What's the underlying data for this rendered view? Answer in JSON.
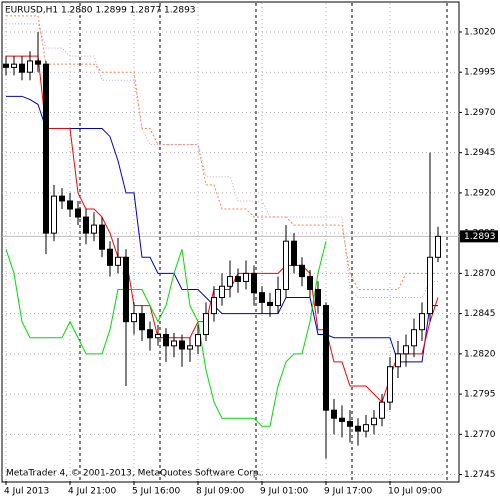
{
  "chart_data": {
    "type": "candlestick",
    "title": "EURUSD,H1  1.2880 1.2899 1.2877 1.2893",
    "annotation": "MetaTrader 4, © 2001-2013, MetaQuotes Software Corp.",
    "categories": [
      "4 Jul 2013",
      null,
      null,
      null,
      null,
      null,
      null,
      null,
      "4 Jul 21:00",
      null,
      null,
      null,
      null,
      null,
      null,
      null,
      "5 Jul 16:00",
      null,
      null,
      null,
      null,
      null,
      null,
      null,
      "8 Jul 09:00",
      null,
      null,
      null,
      null,
      null,
      null,
      null,
      "9 Jul 01:00",
      null,
      null,
      null,
      null,
      null,
      null,
      null,
      "9 Jul 17:00",
      null,
      null,
      null,
      null,
      null,
      null,
      null,
      "10 Jul 09:00",
      null,
      null,
      null,
      null,
      null,
      null
    ],
    "ohlc": [
      [
        1.3,
        1.3005,
        1.2993,
        1.2998
      ],
      [
        1.2998,
        1.3005,
        1.2993,
        1.3
      ],
      [
        1.3,
        1.3005,
        1.299,
        1.2995
      ],
      [
        1.2995,
        1.3008,
        1.299,
        1.3002
      ],
      [
        1.3002,
        1.302,
        1.2995,
        1.3
      ],
      [
        1.3,
        1.3002,
        1.2882,
        1.2895
      ],
      [
        1.2895,
        1.2925,
        1.289,
        1.2918
      ],
      [
        1.2918,
        1.2923,
        1.291,
        1.2915
      ],
      [
        1.2915,
        1.292,
        1.2905,
        1.291
      ],
      [
        1.291,
        1.2915,
        1.29,
        1.2905
      ],
      [
        1.2905,
        1.291,
        1.2888,
        1.2895
      ],
      [
        1.2895,
        1.2908,
        1.289,
        1.29
      ],
      [
        1.29,
        1.2905,
        1.288,
        1.2885
      ],
      [
        1.2885,
        1.289,
        1.2868,
        1.2875
      ],
      [
        1.2875,
        1.2892,
        1.287,
        1.288
      ],
      [
        1.288,
        1.2885,
        1.28,
        1.284
      ],
      [
        1.284,
        1.2852,
        1.2832,
        1.2845
      ],
      [
        1.2845,
        1.285,
        1.2828,
        1.2835
      ],
      [
        1.2835,
        1.284,
        1.2822,
        1.283
      ],
      [
        1.283,
        1.2838,
        1.2825,
        1.2832
      ],
      [
        1.2832,
        1.2836,
        1.2815,
        1.2825
      ],
      [
        1.2825,
        1.2833,
        1.2818,
        1.2828
      ],
      [
        1.2828,
        1.2832,
        1.2812,
        1.2823
      ],
      [
        1.2823,
        1.283,
        1.2815,
        1.2825
      ],
      [
        1.2825,
        1.2838,
        1.282,
        1.2832
      ],
      [
        1.2832,
        1.2852,
        1.2828,
        1.2845
      ],
      [
        1.2845,
        1.2862,
        1.284,
        1.2855
      ],
      [
        1.2855,
        1.287,
        1.285,
        1.2862
      ],
      [
        1.2862,
        1.2878,
        1.2855,
        1.2868
      ],
      [
        1.2868,
        1.2873,
        1.2858,
        1.2865
      ],
      [
        1.2865,
        1.2878,
        1.286,
        1.287
      ],
      [
        1.287,
        1.2875,
        1.285,
        1.2858
      ],
      [
        1.2858,
        1.2862,
        1.2845,
        1.2852
      ],
      [
        1.2852,
        1.2858,
        1.2843,
        1.285
      ],
      [
        1.285,
        1.2868,
        1.2845,
        1.286
      ],
      [
        1.286,
        1.29,
        1.2855,
        1.289
      ],
      [
        1.289,
        1.2895,
        1.287,
        1.2875
      ],
      [
        1.2875,
        1.288,
        1.2862,
        1.2868
      ],
      [
        1.2868,
        1.2872,
        1.2855,
        1.286
      ],
      [
        1.286,
        1.2865,
        1.2845,
        1.285
      ],
      [
        1.285,
        1.2852,
        1.2755,
        1.2785
      ],
      [
        1.2785,
        1.2792,
        1.277,
        1.278
      ],
      [
        1.278,
        1.2788,
        1.2768,
        1.2778
      ],
      [
        1.2778,
        1.2785,
        1.2765,
        1.2775
      ],
      [
        1.2775,
        1.278,
        1.2763,
        1.2772
      ],
      [
        1.2772,
        1.2782,
        1.2768,
        1.2776
      ],
      [
        1.2776,
        1.2785,
        1.277,
        1.278
      ],
      [
        1.278,
        1.2795,
        1.2775,
        1.279
      ],
      [
        1.279,
        1.2818,
        1.2785,
        1.2812
      ],
      [
        1.2812,
        1.2828,
        1.2805,
        1.282
      ],
      [
        1.282,
        1.2832,
        1.2812,
        1.2825
      ],
      [
        1.2825,
        1.2842,
        1.2818,
        1.2835
      ],
      [
        1.2835,
        1.2852,
        1.2828,
        1.2845
      ],
      [
        1.2845,
        1.2945,
        1.284,
        1.288
      ],
      [
        1.288,
        1.2899,
        1.2877,
        1.2893
      ]
    ],
    "series": [
      {
        "color": "#ff7f50",
        "dash": "2,2",
        "values": [
          1.303,
          1.303,
          1.303,
          1.303,
          1.303,
          1.3,
          1.3,
          1.3,
          1.3,
          1.3,
          1.3,
          1.3,
          1.2995,
          1.2995,
          1.2995,
          1.2995,
          1.2995,
          1.296,
          1.296,
          1.295,
          1.295,
          1.295,
          1.295,
          1.295,
          1.295,
          1.2925,
          1.2925,
          1.291,
          1.291,
          1.291,
          1.291,
          1.2905,
          1.2905,
          1.2905,
          1.2905,
          1.2905,
          1.29,
          1.29,
          1.29,
          1.29,
          1.29,
          1.29,
          1.29,
          1.287,
          1.286,
          1.286,
          1.286,
          1.286,
          1.286,
          1.286,
          1.287,
          1.287,
          1.287,
          1.287,
          1.287
        ]
      },
      {
        "color": "#c8a2c8",
        "dash": "1,2",
        "values": [
          1.3025,
          1.3025,
          1.3025,
          1.3025,
          1.3025,
          1.301,
          1.301,
          1.301,
          1.3005,
          1.3005,
          1.3005,
          1.3005,
          1.299,
          1.299,
          1.299,
          1.299,
          1.299,
          1.296,
          1.295,
          1.295,
          1.295,
          1.295,
          1.295,
          1.295,
          1.295,
          1.293,
          1.293,
          1.293,
          1.293,
          1.2915,
          1.2915,
          1.2915,
          1.2915,
          1.2905,
          1.2905,
          1.2905,
          1.2905,
          1.2905,
          1.2905,
          1.2905,
          1.2905,
          1.2905,
          1.2905,
          1.286,
          1.2855,
          1.2855,
          1.2855,
          1.2855,
          1.2855,
          1.2855,
          1.2855,
          1.2855,
          1.2855,
          1.2865,
          1.2865
        ]
      },
      {
        "color": "#0000cd",
        "dash": "none",
        "values": [
          1.298,
          1.298,
          1.298,
          1.2978,
          1.2975,
          1.296,
          1.296,
          1.296,
          1.296,
          1.296,
          1.296,
          1.296,
          1.296,
          1.2955,
          1.294,
          1.292,
          1.292,
          1.288,
          1.288,
          1.287,
          1.287,
          1.287,
          1.286,
          1.286,
          1.286,
          1.2855,
          1.285,
          1.2845,
          1.2845,
          1.2845,
          1.2845,
          1.2845,
          1.2845,
          1.2845,
          1.2845,
          1.2855,
          1.2855,
          1.2855,
          1.2855,
          1.2832,
          1.2832,
          1.283,
          1.283,
          1.283,
          1.283,
          1.283,
          1.283,
          1.283,
          1.283,
          1.2815,
          1.2815,
          1.2815,
          1.2815,
          1.285,
          1.285
        ]
      },
      {
        "color": "#ff0000",
        "dash": "none",
        "values": [
          1.3005,
          1.3005,
          1.3005,
          1.3005,
          1.3005,
          1.296,
          1.296,
          1.296,
          1.296,
          1.292,
          1.291,
          1.291,
          1.2905,
          1.2895,
          1.288,
          1.288,
          1.285,
          1.285,
          1.285,
          1.283,
          1.283,
          1.283,
          1.283,
          1.283,
          1.284,
          1.284,
          1.286,
          1.286,
          1.286,
          1.287,
          1.287,
          1.287,
          1.287,
          1.287,
          1.287,
          1.2875,
          1.2875,
          1.2875,
          1.287,
          1.2835,
          1.2835,
          1.2815,
          1.2815,
          1.28,
          1.28,
          1.28,
          1.2795,
          1.279,
          1.2805,
          1.282,
          1.282,
          1.282,
          1.282,
          1.284,
          1.2855
        ]
      },
      {
        "color": "#00dd00",
        "dash": "none",
        "values": [
          1.2885,
          1.287,
          1.284,
          1.283,
          1.283,
          1.283,
          1.283,
          1.283,
          1.284,
          1.283,
          1.282,
          1.282,
          1.282,
          1.2835,
          1.286,
          1.286,
          1.286,
          1.286,
          1.285,
          1.284,
          1.285,
          1.287,
          1.2885,
          1.285,
          1.284,
          1.281,
          1.279,
          1.278,
          1.278,
          1.278,
          1.278,
          1.278,
          1.2775,
          1.2775,
          1.28,
          1.2815,
          1.282,
          1.282,
          1.284,
          1.287,
          1.289,
          null,
          null,
          null,
          null,
          null,
          null,
          null,
          null,
          null,
          null,
          null,
          null,
          null,
          null
        ]
      }
    ],
    "current_price": 1.2893,
    "ylim": [
      1.2741,
      1.3038
    ],
    "yticks": [
      {
        "value": 1.302,
        "label": "1.3020"
      },
      1.2995,
      {
        "value": 1.297,
        "label": "1.2970"
      },
      1.2945,
      {
        "value": 1.292,
        "label": "1.2920"
      },
      1.2895,
      {
        "value": 1.287,
        "label": "1.2870"
      },
      1.2845,
      {
        "value": 1.282,
        "label": "1.2820"
      },
      1.2795,
      {
        "value": 1.277,
        "label": "1.2770"
      },
      1.2745
    ],
    "grid": true
  }
}
